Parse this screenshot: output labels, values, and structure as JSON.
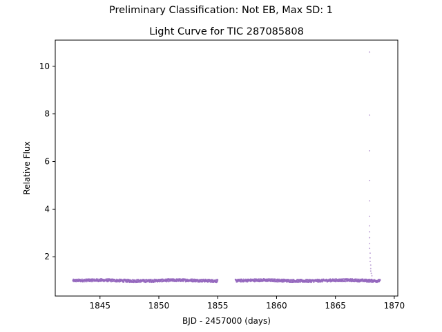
{
  "suptitle": "Preliminary Classification: Not EB, Max SD: 1",
  "chart_data": {
    "type": "scatter",
    "title": "Light Curve for TIC 287085808",
    "xlabel": "BJD - 2457000 (days)",
    "ylabel": "Relative Flux",
    "xlim": [
      1841.2,
      1870.3
    ],
    "ylim": [
      0.35,
      11.1
    ],
    "xticks": [
      1845,
      1850,
      1855,
      1860,
      1865,
      1870
    ],
    "yticks": [
      2,
      4,
      6,
      8,
      10
    ],
    "grid": false,
    "marker_color": "#9467bd",
    "segments": [
      {
        "x_start": 1842.7,
        "x_end": 1855.0,
        "flux_median": 1.0,
        "flux_scatter": 0.06
      },
      {
        "x_start": 1856.5,
        "x_end": 1868.8,
        "flux_median": 1.0,
        "flux_scatter": 0.06
      }
    ],
    "outliers": [
      {
        "x": 1867.9,
        "y": 10.6
      },
      {
        "x": 1867.9,
        "y": 7.95
      },
      {
        "x": 1867.9,
        "y": 6.45
      },
      {
        "x": 1867.9,
        "y": 5.2
      },
      {
        "x": 1867.9,
        "y": 4.35
      },
      {
        "x": 1867.9,
        "y": 3.7
      },
      {
        "x": 1867.9,
        "y": 3.3
      },
      {
        "x": 1867.9,
        "y": 3.05
      },
      {
        "x": 1867.9,
        "y": 2.8
      },
      {
        "x": 1867.9,
        "y": 2.55
      },
      {
        "x": 1867.9,
        "y": 2.35
      },
      {
        "x": 1867.95,
        "y": 2.15
      },
      {
        "x": 1867.95,
        "y": 1.95
      },
      {
        "x": 1867.95,
        "y": 1.8
      },
      {
        "x": 1868.0,
        "y": 1.65
      },
      {
        "x": 1868.0,
        "y": 1.5
      },
      {
        "x": 1868.0,
        "y": 1.4
      },
      {
        "x": 1868.05,
        "y": 1.3
      },
      {
        "x": 1868.1,
        "y": 1.2
      }
    ]
  }
}
